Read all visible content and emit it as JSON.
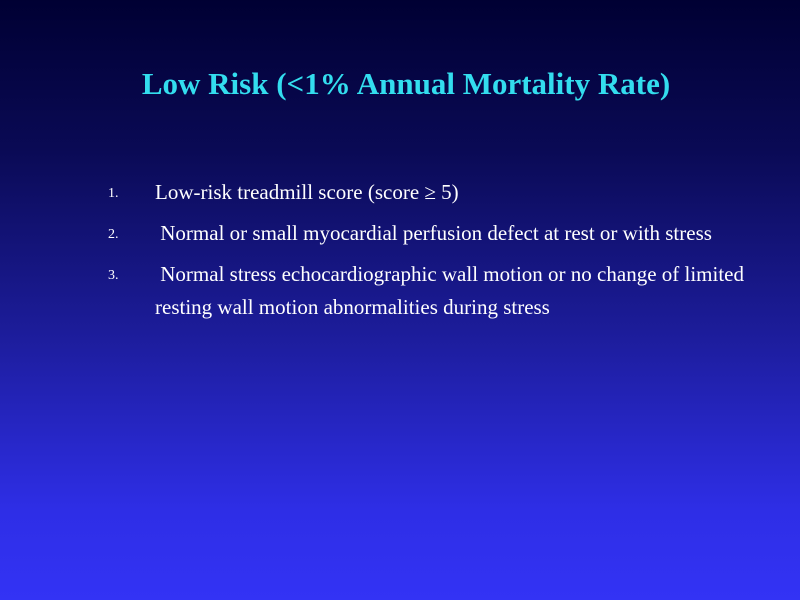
{
  "slide": {
    "title": "Low Risk (<1% Annual Mortality Rate)",
    "items": [
      {
        "number": "1.",
        "text": "Low-risk treadmill score (score ≥ 5)"
      },
      {
        "number": "2.",
        "text": " Normal or small myocardial perfusion defect at rest or with stress"
      },
      {
        "number": "3.",
        "text": " Normal stress echocardiographic wall motion or no change of limited resting wall motion abnormalities during stress"
      }
    ],
    "colors": {
      "title": "#33ddee",
      "body_text": "#ffffff",
      "background_top": "#000033",
      "background_bottom": "#3333f5"
    }
  }
}
